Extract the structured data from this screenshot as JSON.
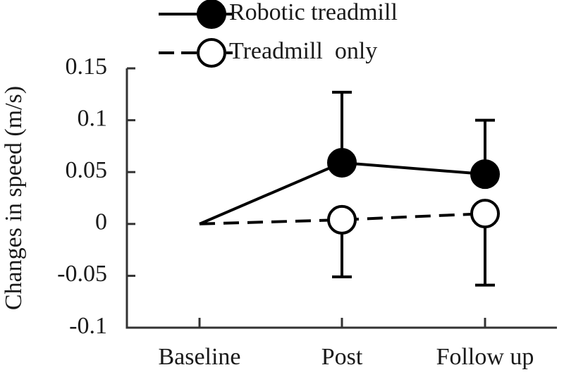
{
  "chart_data": {
    "type": "line",
    "y_label": "Changes in speed (m/s)",
    "categories": [
      "Baseline",
      "Post",
      "Follow up"
    ],
    "series": [
      {
        "name": "Robotic treadmill",
        "color": "#000000",
        "marker_fill": "#000000",
        "dashed": false,
        "values": [
          0,
          0.059,
          0.048
        ],
        "errors": [
          null,
          0.068,
          0.052
        ],
        "error_direction": "up"
      },
      {
        "name": "Treadmill  only",
        "color": "#000000",
        "marker_fill": "#ffffff",
        "dashed": true,
        "values": [
          0,
          0.004,
          0.01
        ],
        "errors": [
          null,
          0.055,
          0.069
        ],
        "error_direction": "down"
      }
    ],
    "ylim": [
      -0.1,
      0.15
    ],
    "yticks": [
      -0.1,
      -0.05,
      0,
      0.05,
      0.1,
      0.15
    ],
    "legend": "top"
  }
}
